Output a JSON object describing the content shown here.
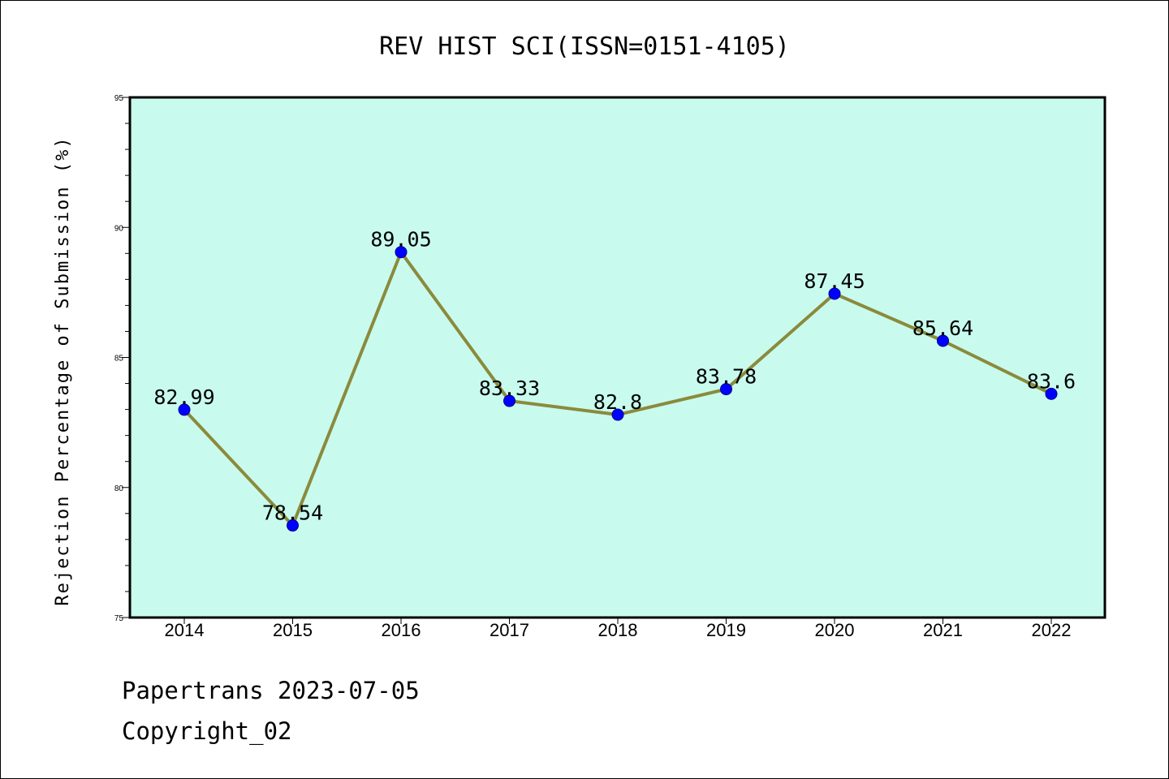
{
  "chart_data": {
    "type": "line",
    "title": "REV HIST SCI(ISSN=0151-4105)",
    "xlabel": "",
    "ylabel": "Rejection Percentage of Submission (%)",
    "categories": [
      "2014",
      "2015",
      "2016",
      "2017",
      "2018",
      "2019",
      "2020",
      "2021",
      "2022"
    ],
    "values": [
      82.99,
      78.54,
      89.05,
      83.33,
      82.8,
      83.78,
      87.45,
      85.64,
      83.6
    ],
    "data_labels": [
      "82.99",
      "78.54",
      "89.05",
      "83.33",
      "82.8",
      "83.78",
      "87.45",
      "85.64",
      "83.6"
    ],
    "ylim": [
      75,
      95
    ],
    "yticks": [
      75,
      80,
      85,
      90,
      95
    ],
    "grid": false,
    "colors": {
      "plot_background": "#c8fbee",
      "line": "#8b8a3c",
      "marker": "#0000ff"
    }
  },
  "footer": {
    "line1": "Papertrans 2023-07-05",
    "line2": "Copyright_02"
  }
}
